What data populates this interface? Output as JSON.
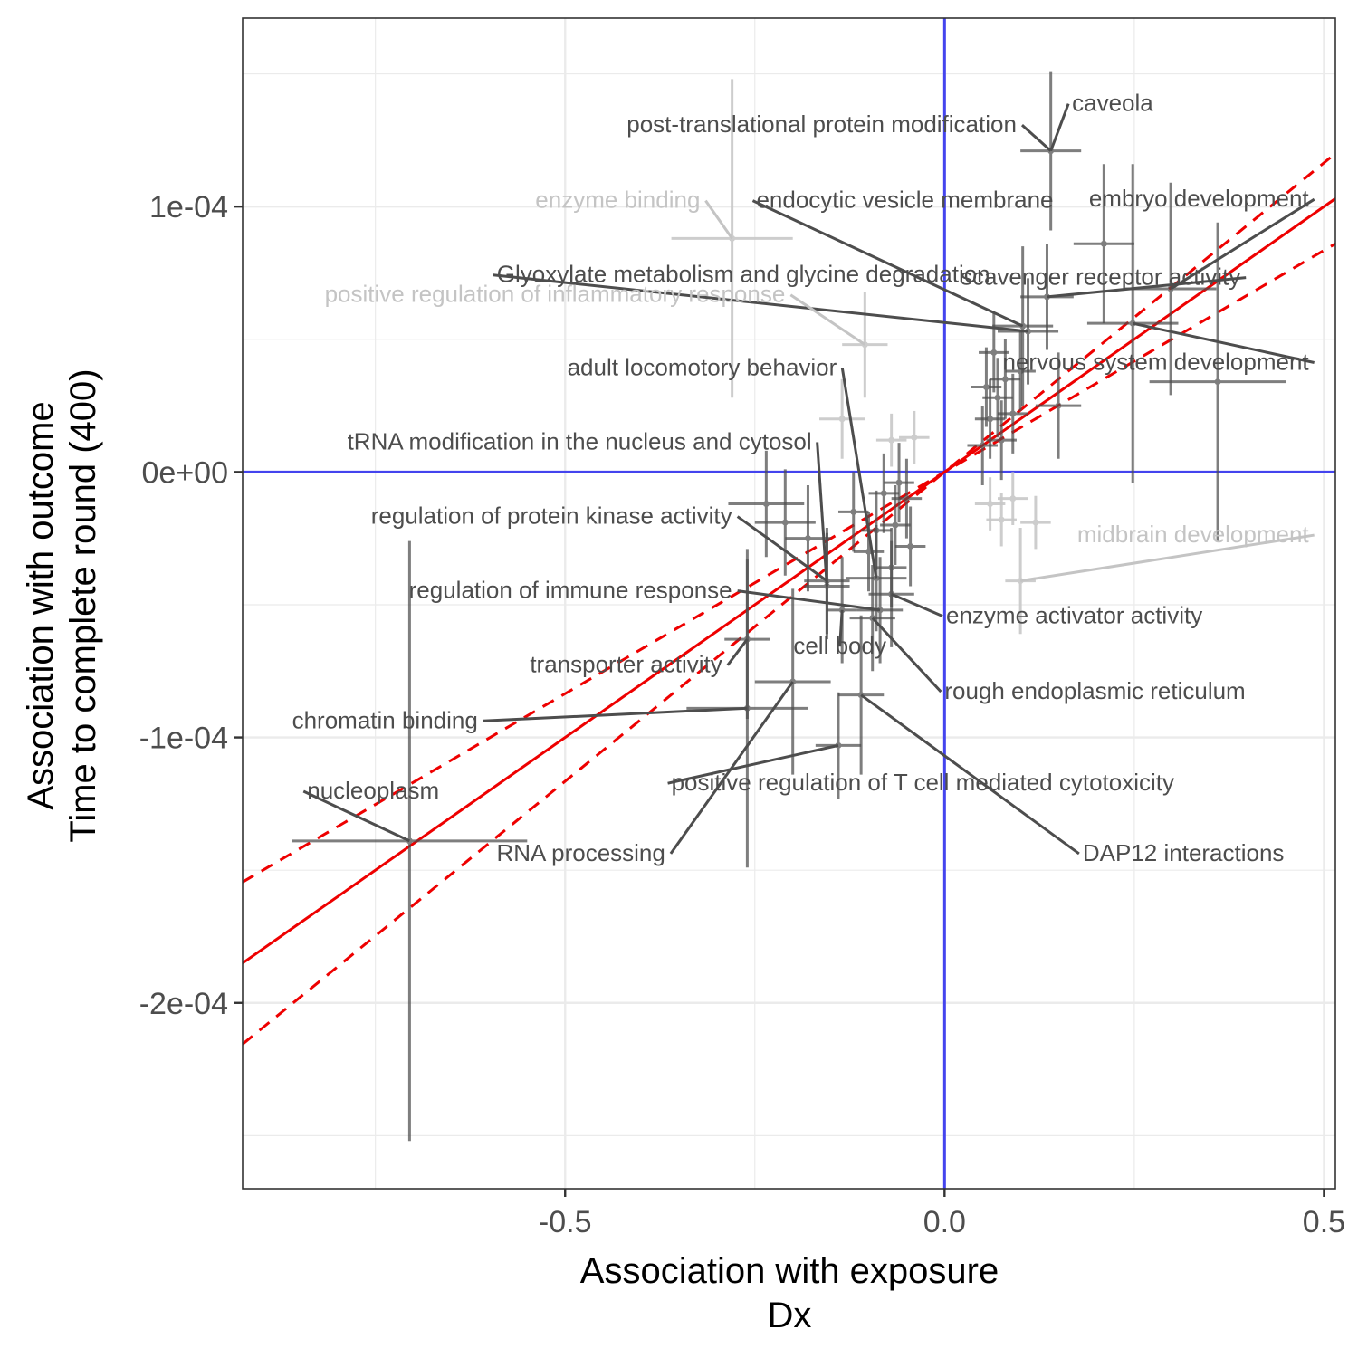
{
  "chart_data": {
    "type": "scatter",
    "title": "",
    "xlabel": [
      "Association with exposure",
      "Dx"
    ],
    "ylabel": [
      "Association with outcome",
      "Time to complete round (400)"
    ],
    "xlim": [
      -0.925,
      0.515
    ],
    "ylim": [
      -0.00027,
      0.000171
    ],
    "x_ticks": [
      -0.5,
      0.0,
      0.5
    ],
    "x_tick_labels": [
      "-0.5",
      "0.0",
      "0.5"
    ],
    "y_ticks": [
      0.0001,
      0.0,
      -0.0001,
      -0.0002
    ],
    "y_tick_labels": [
      "1e-04",
      "0e+00",
      "-1e-04",
      "-2e-04"
    ],
    "grid": true,
    "reference_lines": {
      "x": 0,
      "y": 0,
      "color": "#4444ee"
    },
    "fit": {
      "slope": 0.0002,
      "intercept": 0.0,
      "lower_slope": 0.000167,
      "upper_slope": 0.000233,
      "color": "#ee0000"
    },
    "colors": {
      "highlight": "#4d4d4d",
      "muted": "#c8c8c8",
      "label_dark": "#4d4d4d",
      "label_light": "#c4c4c4"
    },
    "points": [
      {
        "label": "caveola",
        "x": 0.14,
        "y": 0.000121,
        "xe": 0.04,
        "ye": 3e-05,
        "hl": true,
        "lx": 0.168,
        "ly": 0.000136,
        "anchor": "start"
      },
      {
        "label": "post-translational protein modification",
        "x": 0.14,
        "y": 0.000121,
        "xe": 0.04,
        "ye": 3e-05,
        "hl": true,
        "lx": 0.095,
        "ly": 0.000128,
        "anchor": "end"
      },
      {
        "label": "embryo development",
        "x": 0.298,
        "y": 6.9e-05,
        "xe": 0.06,
        "ye": 4e-05,
        "hl": true,
        "lx": 0.48,
        "ly": 0.0001,
        "anchor": "end"
      },
      {
        "label": "endocytic vesicle membrane",
        "x": 0.103,
        "y": 5.5e-05,
        "xe": 0.04,
        "ye": 3e-05,
        "hl": true,
        "lx": -0.248,
        "ly": 9.95e-05,
        "anchor": "start"
      },
      {
        "label": "enzyme binding",
        "x": -0.28,
        "y": 8.8e-05,
        "xe": 0.08,
        "ye": 6e-05,
        "hl": false,
        "lx": -0.322,
        "ly": 9.95e-05,
        "anchor": "end"
      },
      {
        "label": "Glyoxylate metabolism and glycine degradation",
        "x": 0.11,
        "y": 5.3e-05,
        "xe": 0.04,
        "ye": 2e-05,
        "hl": true,
        "lx": -0.59,
        "ly": 7.15e-05,
        "anchor": "start"
      },
      {
        "label": "scavenger receptor activity",
        "x": 0.135,
        "y": 6.6e-05,
        "xe": 0.035,
        "ye": 2e-05,
        "hl": true,
        "lx": 0.39,
        "ly": 7.05e-05,
        "anchor": "end"
      },
      {
        "label": "positive regulation of inflammatory response",
        "x": -0.105,
        "y": 4.8e-05,
        "xe": 0.03,
        "ye": 2e-05,
        "hl": false,
        "lx": -0.21,
        "ly": 6.4e-05,
        "anchor": "end"
      },
      {
        "label": "nervous system development",
        "x": 0.248,
        "y": 5.6e-05,
        "xe": 0.06,
        "ye": 6e-05,
        "hl": true,
        "lx": 0.48,
        "ly": 3.85e-05,
        "anchor": "end"
      },
      {
        "label": "adult locomotory behavior",
        "x": -0.09,
        "y": -4e-05,
        "xe": 0.04,
        "ye": 2e-05,
        "hl": true,
        "lx": -0.142,
        "ly": 3.65e-05,
        "anchor": "end"
      },
      {
        "label": "tRNA modification in the nucleus and cytosol",
        "x": -0.155,
        "y": -4.3e-05,
        "xe": 0.03,
        "ye": 2e-05,
        "hl": true,
        "lx": -0.175,
        "ly": 8.5e-06,
        "anchor": "end"
      },
      {
        "label": "midbrain development",
        "x": 0.1,
        "y": -4.1e-05,
        "xe": 0.02,
        "ye": 2e-05,
        "hl": false,
        "lx": 0.48,
        "ly": -2.65e-05,
        "anchor": "end"
      },
      {
        "label": "regulation of protein kinase activity",
        "x": -0.155,
        "y": -4.1e-05,
        "xe": 0.03,
        "ye": 2e-05,
        "hl": true,
        "lx": -0.28,
        "ly": -1.95e-05,
        "anchor": "end"
      },
      {
        "label": "regulation of immune response",
        "x": -0.085,
        "y": -5.2e-05,
        "xe": 0.03,
        "ye": 2e-05,
        "hl": true,
        "lx": -0.28,
        "ly": -4.75e-05,
        "anchor": "end"
      },
      {
        "label": "enzyme activator activity",
        "x": -0.07,
        "y": -4.6e-05,
        "xe": 0.03,
        "ye": 2e-05,
        "hl": true,
        "lx": 0.002,
        "ly": -5.7e-05,
        "anchor": "start"
      },
      {
        "label": "cell body",
        "x": -0.135,
        "y": -5.2e-05,
        "xe": 0.02,
        "ye": 2e-05,
        "hl": true,
        "lx": -0.138,
        "ly": -6.85e-05,
        "anchor": "middle"
      },
      {
        "label": "transporter activity",
        "x": -0.26,
        "y": -6.3e-05,
        "xe": 0.03,
        "ye": 3e-05,
        "hl": true,
        "lx": -0.293,
        "ly": -7.55e-05,
        "anchor": "end"
      },
      {
        "label": "rough endoplasmic reticulum",
        "x": -0.095,
        "y": -5.5e-05,
        "xe": 0.03,
        "ye": 2e-05,
        "hl": true,
        "lx": -0.0,
        "ly": -8.55e-05,
        "anchor": "start"
      },
      {
        "label": "chromatin binding",
        "x": -0.26,
        "y": -8.9e-05,
        "xe": 0.08,
        "ye": 6e-05,
        "hl": true,
        "lx": -0.615,
        "ly": -9.65e-05,
        "anchor": "end"
      },
      {
        "label": "positive regulation of T cell mediated cytotoxicity",
        "x": -0.14,
        "y": -0.000103,
        "xe": 0.03,
        "ye": 2e-05,
        "hl": true,
        "lx": -0.36,
        "ly": -0.00012,
        "anchor": "start"
      },
      {
        "label": "nucleoplasm",
        "x": -0.705,
        "y": -0.000139,
        "xe": 0.155,
        "ye": 0.000113,
        "hl": true,
        "lx": -0.84,
        "ly": -0.000123,
        "anchor": "start"
      },
      {
        "label": "RNA processing",
        "x": -0.2,
        "y": -7.9e-05,
        "xe": 0.05,
        "ye": 3.5e-05,
        "hl": true,
        "lx": -0.368,
        "ly": -0.0001465,
        "anchor": "end"
      },
      {
        "label": "DAP12 interactions",
        "x": -0.11,
        "y": -8.4e-05,
        "xe": 0.03,
        "ye": 3e-05,
        "hl": true,
        "lx": 0.182,
        "ly": -0.0001465,
        "anchor": "start"
      },
      {
        "label": "",
        "x": -0.235,
        "y": -1.2e-05,
        "xe": 0.05,
        "ye": 2e-05,
        "hl": true
      },
      {
        "label": "",
        "x": -0.21,
        "y": -1.9e-05,
        "xe": 0.04,
        "ye": 2e-05,
        "hl": true
      },
      {
        "label": "",
        "x": -0.18,
        "y": -2.5e-05,
        "xe": 0.03,
        "ye": 2e-05,
        "hl": true
      },
      {
        "label": "",
        "x": -0.12,
        "y": -1.5e-05,
        "xe": 0.02,
        "ye": 1.5e-05,
        "hl": true
      },
      {
        "label": "",
        "x": -0.1,
        "y": -3e-05,
        "xe": 0.02,
        "ye": 1.5e-05,
        "hl": true
      },
      {
        "label": "",
        "x": -0.08,
        "y": -8e-06,
        "xe": 0.02,
        "ye": 1.5e-05,
        "hl": true
      },
      {
        "label": "",
        "x": -0.065,
        "y": -2e-05,
        "xe": 0.02,
        "ye": 1.5e-05,
        "hl": true
      },
      {
        "label": "",
        "x": -0.05,
        "y": -1e-05,
        "xe": 0.02,
        "ye": 1.5e-05,
        "hl": true
      },
      {
        "label": "",
        "x": -0.045,
        "y": -2.8e-05,
        "xe": 0.02,
        "ye": 1.5e-05,
        "hl": true
      },
      {
        "label": "",
        "x": -0.07,
        "y": -3.6e-05,
        "xe": 0.02,
        "ye": 1.5e-05,
        "hl": true
      },
      {
        "label": "",
        "x": -0.09,
        "y": -2.2e-05,
        "xe": 0.02,
        "ye": 1.5e-05,
        "hl": true
      },
      {
        "label": "",
        "x": -0.06,
        "y": -4e-06,
        "xe": 0.02,
        "ye": 1.5e-05,
        "hl": true
      },
      {
        "label": "",
        "x": 0.05,
        "y": 1e-05,
        "xe": 0.02,
        "ye": 1.5e-05,
        "hl": true
      },
      {
        "label": "",
        "x": 0.06,
        "y": 2e-05,
        "xe": 0.02,
        "ye": 1.5e-05,
        "hl": true
      },
      {
        "label": "",
        "x": 0.07,
        "y": 2.8e-05,
        "xe": 0.02,
        "ye": 1.5e-05,
        "hl": true
      },
      {
        "label": "",
        "x": 0.08,
        "y": 3.5e-05,
        "xe": 0.02,
        "ye": 1.5e-05,
        "hl": true
      },
      {
        "label": "",
        "x": 0.065,
        "y": 4.5e-05,
        "xe": 0.02,
        "ye": 1.5e-05,
        "hl": true
      },
      {
        "label": "",
        "x": 0.09,
        "y": 2.2e-05,
        "xe": 0.02,
        "ye": 1.5e-05,
        "hl": true
      },
      {
        "label": "",
        "x": 0.055,
        "y": 3.2e-05,
        "xe": 0.02,
        "ye": 1.5e-05,
        "hl": true
      },
      {
        "label": "",
        "x": 0.1,
        "y": 3.8e-05,
        "xe": 0.02,
        "ye": 1.5e-05,
        "hl": true
      },
      {
        "label": "",
        "x": 0.075,
        "y": 1.2e-05,
        "xe": 0.02,
        "ye": 1.5e-05,
        "hl": true
      },
      {
        "label": "",
        "x": 0.15,
        "y": 2.5e-05,
        "xe": 0.03,
        "ye": 2e-05,
        "hl": true
      },
      {
        "label": "",
        "x": 0.36,
        "y": 3.4e-05,
        "xe": 0.09,
        "ye": 6e-05,
        "hl": true
      },
      {
        "label": "",
        "x": 0.21,
        "y": 8.6e-05,
        "xe": 0.04,
        "ye": 3e-05,
        "hl": true
      },
      {
        "label": "",
        "x": 0.06,
        "y": -1.2e-05,
        "xe": 0.02,
        "ye": 1e-05,
        "hl": false
      },
      {
        "label": "",
        "x": 0.09,
        "y": -1e-05,
        "xe": 0.02,
        "ye": 1e-05,
        "hl": false
      },
      {
        "label": "",
        "x": 0.12,
        "y": -1.9e-05,
        "xe": 0.02,
        "ye": 1e-05,
        "hl": false
      },
      {
        "label": "",
        "x": 0.075,
        "y": -1.8e-05,
        "xe": 0.02,
        "ye": 1e-05,
        "hl": false
      },
      {
        "label": "",
        "x": -0.135,
        "y": 2e-05,
        "xe": 0.03,
        "ye": 1.5e-05,
        "hl": false
      },
      {
        "label": "",
        "x": -0.07,
        "y": 1.2e-05,
        "xe": 0.02,
        "ye": 1e-05,
        "hl": false
      },
      {
        "label": "",
        "x": -0.04,
        "y": 1.3e-05,
        "xe": 0.02,
        "ye": 1e-05,
        "hl": false
      }
    ]
  }
}
